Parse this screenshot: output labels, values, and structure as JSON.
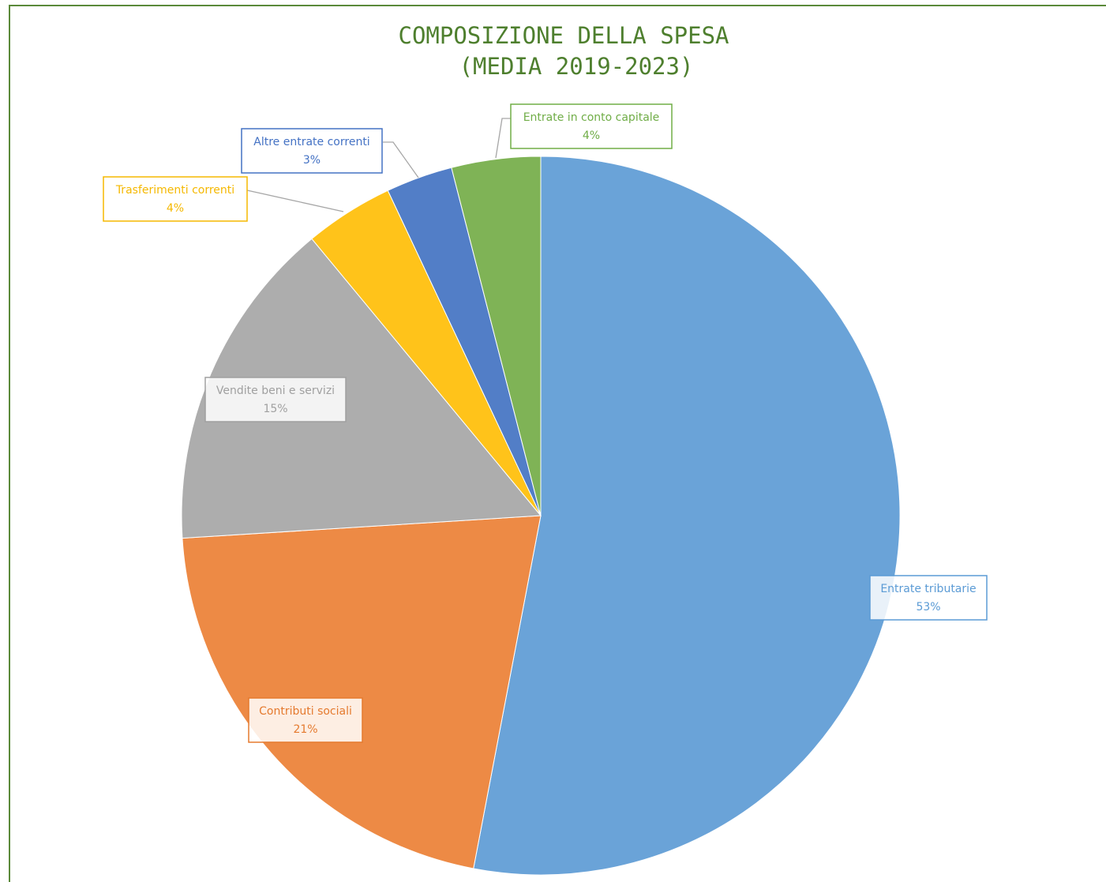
{
  "chart_data": {
    "type": "pie",
    "title": "COMPOSIZIONE DELLA SPESA",
    "subtitle": "(MEDIA 2019-2023)",
    "categories": [
      "Entrate tributarie",
      "Contributi sociali",
      "Vendite beni e servizi",
      "Trasferimenti correnti",
      "Altre entrate correnti",
      "Entrate in conto capitale"
    ],
    "values": [
      53,
      21,
      15,
      4,
      3,
      4
    ],
    "value_labels": [
      "53%",
      "21%",
      "15%",
      "4%",
      "3%",
      "4%"
    ],
    "colors": [
      "#6aa3d8",
      "#ed8a45",
      "#adadad",
      "#ffc31a",
      "#527ec7",
      "#7fb356"
    ]
  }
}
